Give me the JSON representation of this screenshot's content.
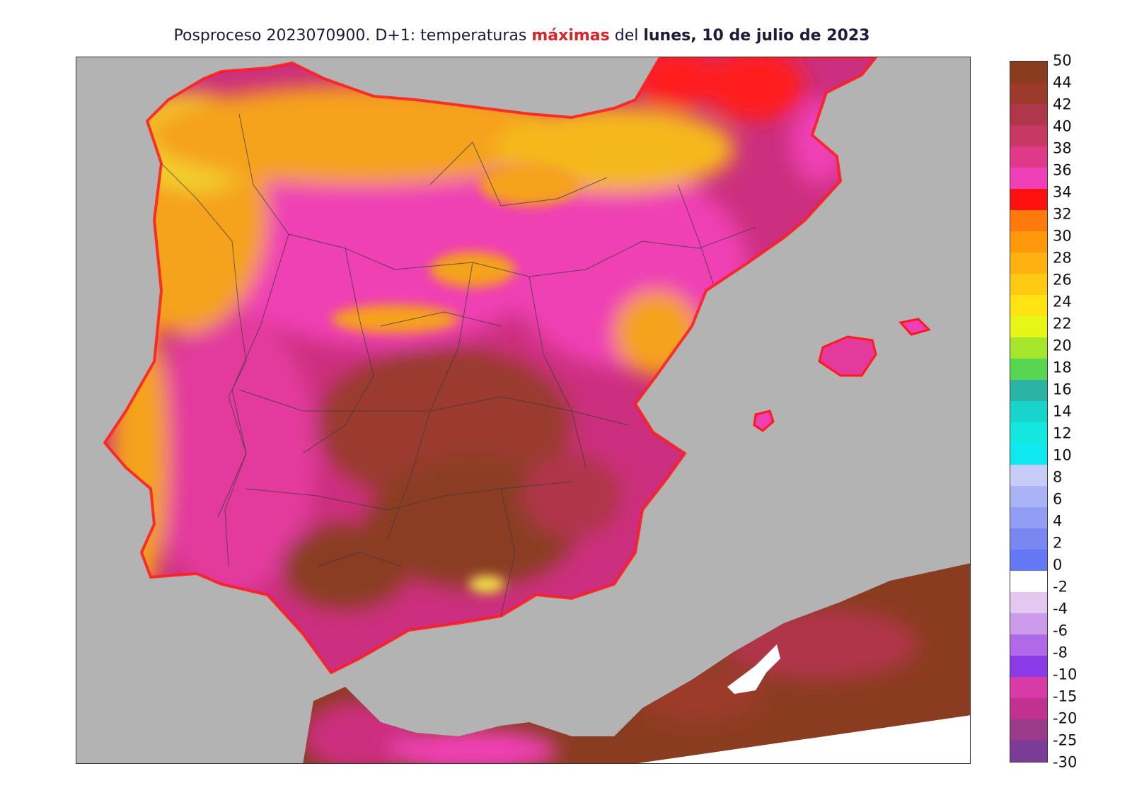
{
  "title": {
    "part1": "Posproceso 2023070900. D+1: temperaturas ",
    "highlight": "máximas",
    "part2": " del ",
    "bold": "lunes, 10 de julio de 2023"
  },
  "colors": {
    "sea": "#b3b3b3",
    "land_low": "#f2e24a",
    "land_orange": "#f5a21a",
    "land_red": "#ff1a1a",
    "land_pink": "#ef3fb4",
    "land_magenta": "#cc2f7e",
    "land_brown": "#8a3c20"
  },
  "legend": {
    "labels": [
      "50",
      "44",
      "42",
      "40",
      "38",
      "36",
      "34",
      "32",
      "30",
      "28",
      "26",
      "24",
      "22",
      "20",
      "18",
      "16",
      "14",
      "12",
      "10",
      "8",
      "6",
      "4",
      "2",
      "0",
      "-2",
      "-4",
      "-6",
      "-8",
      "-10",
      "-15",
      "-20",
      "-25",
      "-30"
    ],
    "colors": [
      "#8a3c1e",
      "#9c3a2c",
      "#b0364a",
      "#c83865",
      "#df3a8a",
      "#f040b8",
      "#ff1010",
      "#ff7a0c",
      "#ff990c",
      "#ffb112",
      "#ffc914",
      "#ffe313",
      "#e6f717",
      "#a8e62e",
      "#58d651",
      "#2bb3a6",
      "#18d4cc",
      "#14e6e0",
      "#10e8f0",
      "#c6cbf7",
      "#aab3f5",
      "#929ef3",
      "#7a86f2",
      "#6478f4",
      "#ffffff",
      "#e5c8f2",
      "#cc9bec",
      "#b06ae8",
      "#8a3ae6",
      "#d83aa8",
      "#c0328e",
      "#9c3a8a",
      "#7a3c96"
    ]
  }
}
